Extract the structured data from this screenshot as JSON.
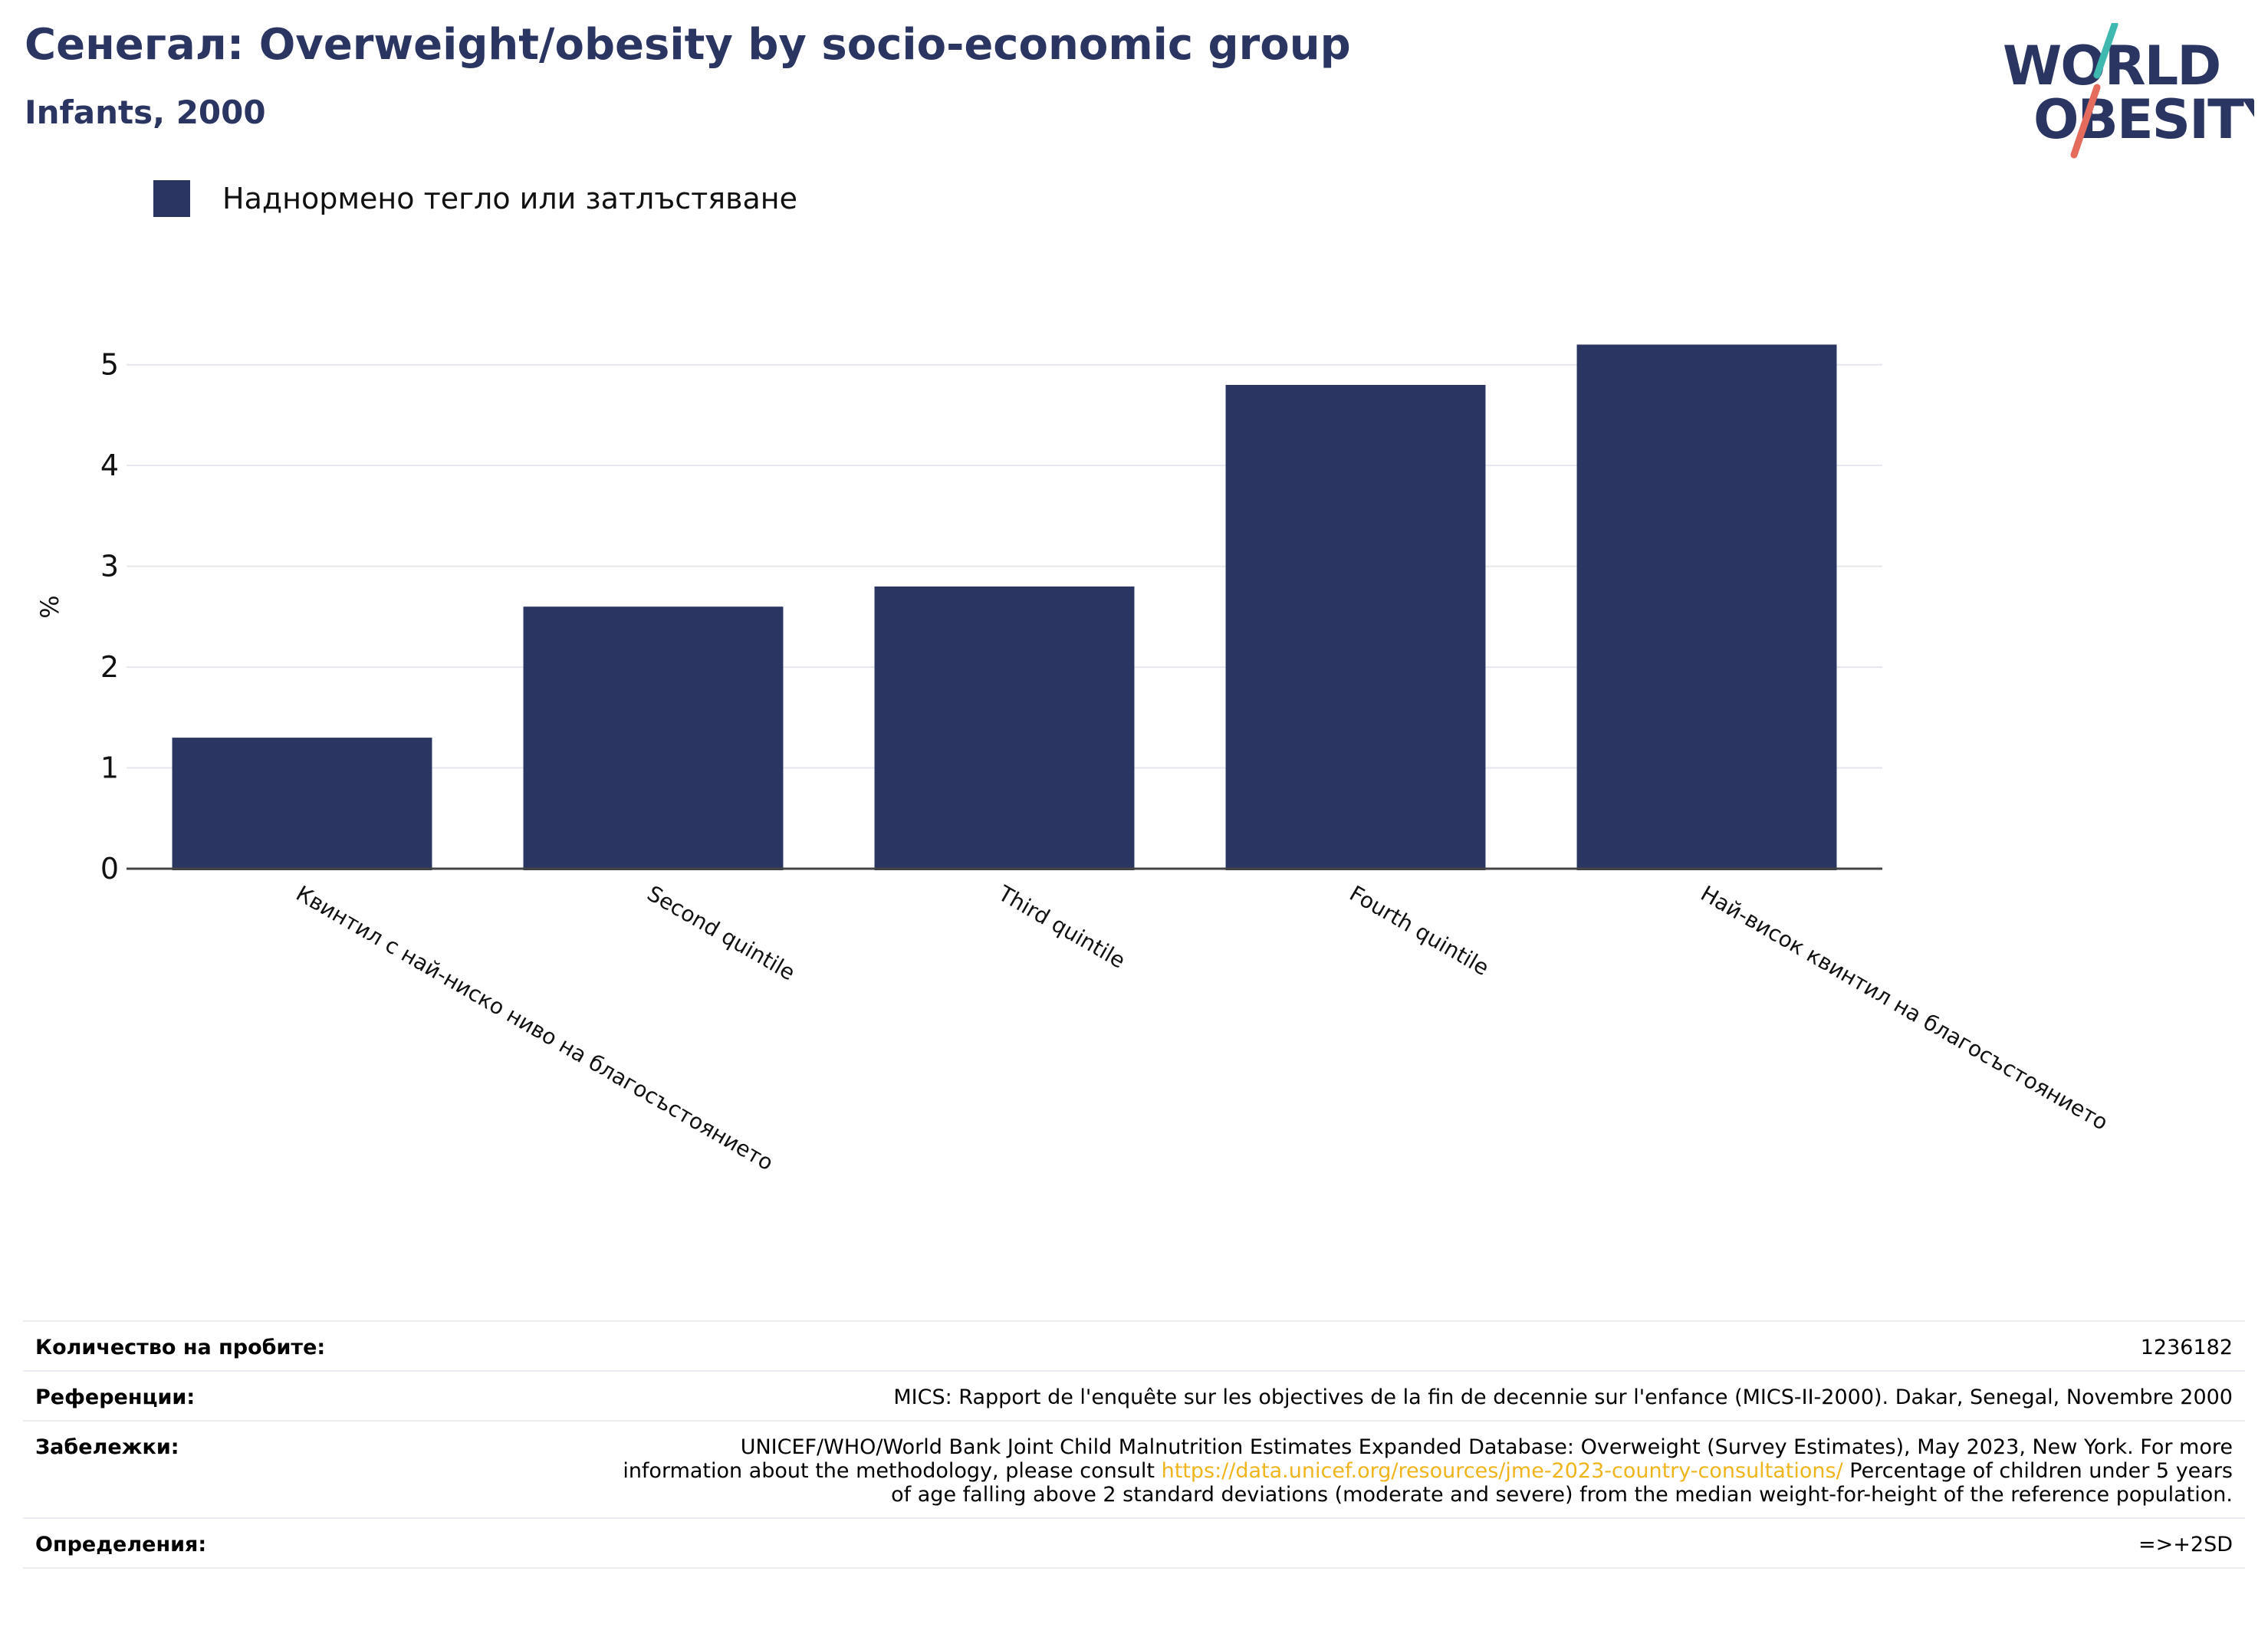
{
  "header": {
    "title": "Сенегал: Overweight/obesity by socio-economic group",
    "subtitle": "Infants, 2000"
  },
  "logo": {
    "line1": "WORLD",
    "line2": "OBESITY",
    "colors": {
      "text": "#2a3561",
      "slash_top": "#3fb8b0",
      "slash_bottom": "#e56b5d"
    }
  },
  "chart_data": {
    "type": "bar",
    "title": "",
    "xlabel": "",
    "ylabel": "%",
    "ylim": [
      0,
      5.5
    ],
    "yticks": [
      0,
      1,
      2,
      3,
      4,
      5
    ],
    "grid": true,
    "legend_position": "top-left",
    "categories": [
      "Квинтил с най-ниско ниво на благосъстоянието",
      "Second quintile",
      "Third quintile",
      "Fourth quintile",
      "Най-висок квинтил на благосъстоянието"
    ],
    "series": [
      {
        "name": "Наднормено тегло или затлъстяване",
        "color": "#2a3561",
        "values": [
          1.3,
          2.6,
          2.8,
          4.8,
          5.2
        ]
      }
    ]
  },
  "meta": {
    "sample_label": "Количество на пробите:",
    "sample_value": "1236182",
    "references_label": "Референции:",
    "references_value": "MICS: Rapport de l'enquête sur les objectives de la fin de decennie sur l'enfance (MICS-II-2000). Dakar, Senegal, Novembre 2000",
    "notes_label": "Забележки:",
    "notes_before": "UNICEF/WHO/World Bank Joint Child Malnutrition Estimates Expanded Database: Overweight (Survey Estimates), May 2023, New York. For more information about the methodology, please consult ",
    "notes_link": "https://data.unicef.org/resources/jme-2023-country-consultations/",
    "notes_after": " Percentage of children under 5 years of age falling above 2 standard deviations (moderate and severe) from the median weight-for-height of the reference population.",
    "definitions_label": "Определения:",
    "definitions_value": "=>+2SD"
  }
}
